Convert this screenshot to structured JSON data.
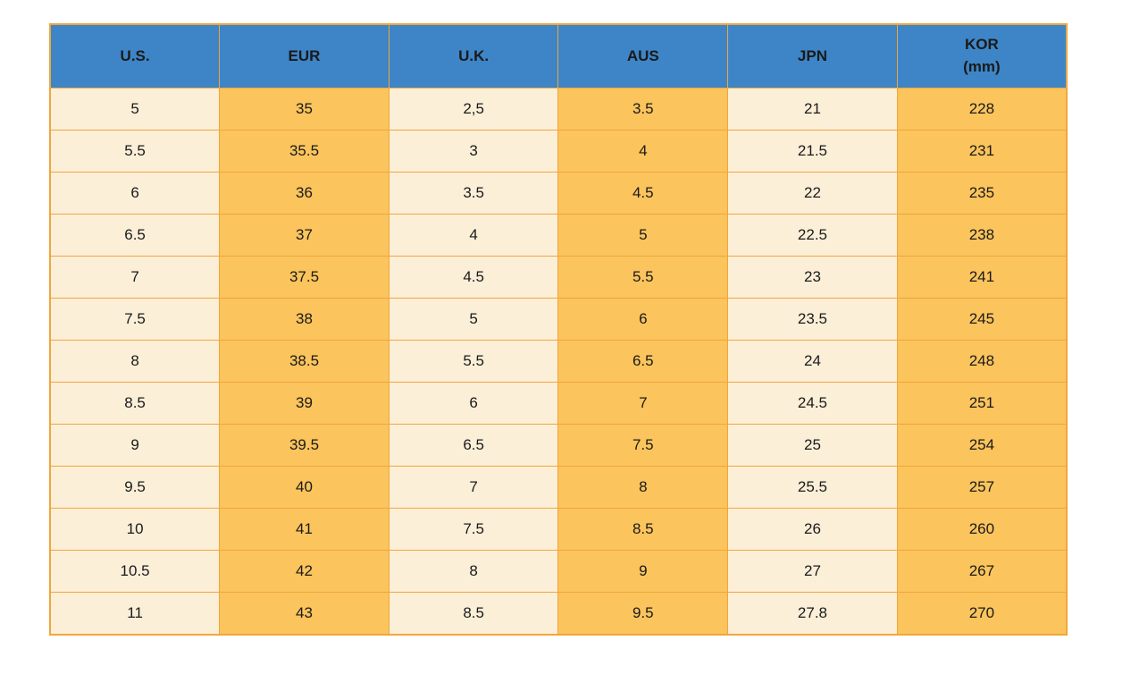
{
  "table": {
    "name": "shoe-size-conversion-chart",
    "headers": [
      "U.S.",
      "EUR",
      "U.K.",
      "AUS",
      "JPN",
      "KOR\n(mm)"
    ],
    "rows": [
      [
        "5",
        "35",
        "2,5",
        "3.5",
        "21",
        "228"
      ],
      [
        "5.5",
        "35.5",
        "3",
        "4",
        "21.5",
        "231"
      ],
      [
        "6",
        "36",
        "3.5",
        "4.5",
        "22",
        "235"
      ],
      [
        "6.5",
        "37",
        "4",
        "5",
        "22.5",
        "238"
      ],
      [
        "7",
        "37.5",
        "4.5",
        "5.5",
        "23",
        "241"
      ],
      [
        "7.5",
        "38",
        "5",
        "6",
        "23.5",
        "245"
      ],
      [
        "8",
        "38.5",
        "5.5",
        "6.5",
        "24",
        "248"
      ],
      [
        "8.5",
        "39",
        "6",
        "7",
        "24.5",
        "251"
      ],
      [
        "9",
        "39.5",
        "6.5",
        "7.5",
        "25",
        "254"
      ],
      [
        "9.5",
        "40",
        "7",
        "8",
        "25.5",
        "257"
      ],
      [
        "10",
        "41",
        "7.5",
        "8.5",
        "26",
        "260"
      ],
      [
        "10.5",
        "42",
        "8",
        "9",
        "27",
        "267"
      ],
      [
        "11",
        "43",
        "8.5",
        "9.5",
        "27.8",
        "270"
      ]
    ],
    "colors": {
      "header_bg": "#3d85c6",
      "cell_cream": "#fcefd8",
      "cell_orange": "#fbc45c",
      "border": "#f0a63d",
      "text": "#1a1a1a"
    }
  }
}
